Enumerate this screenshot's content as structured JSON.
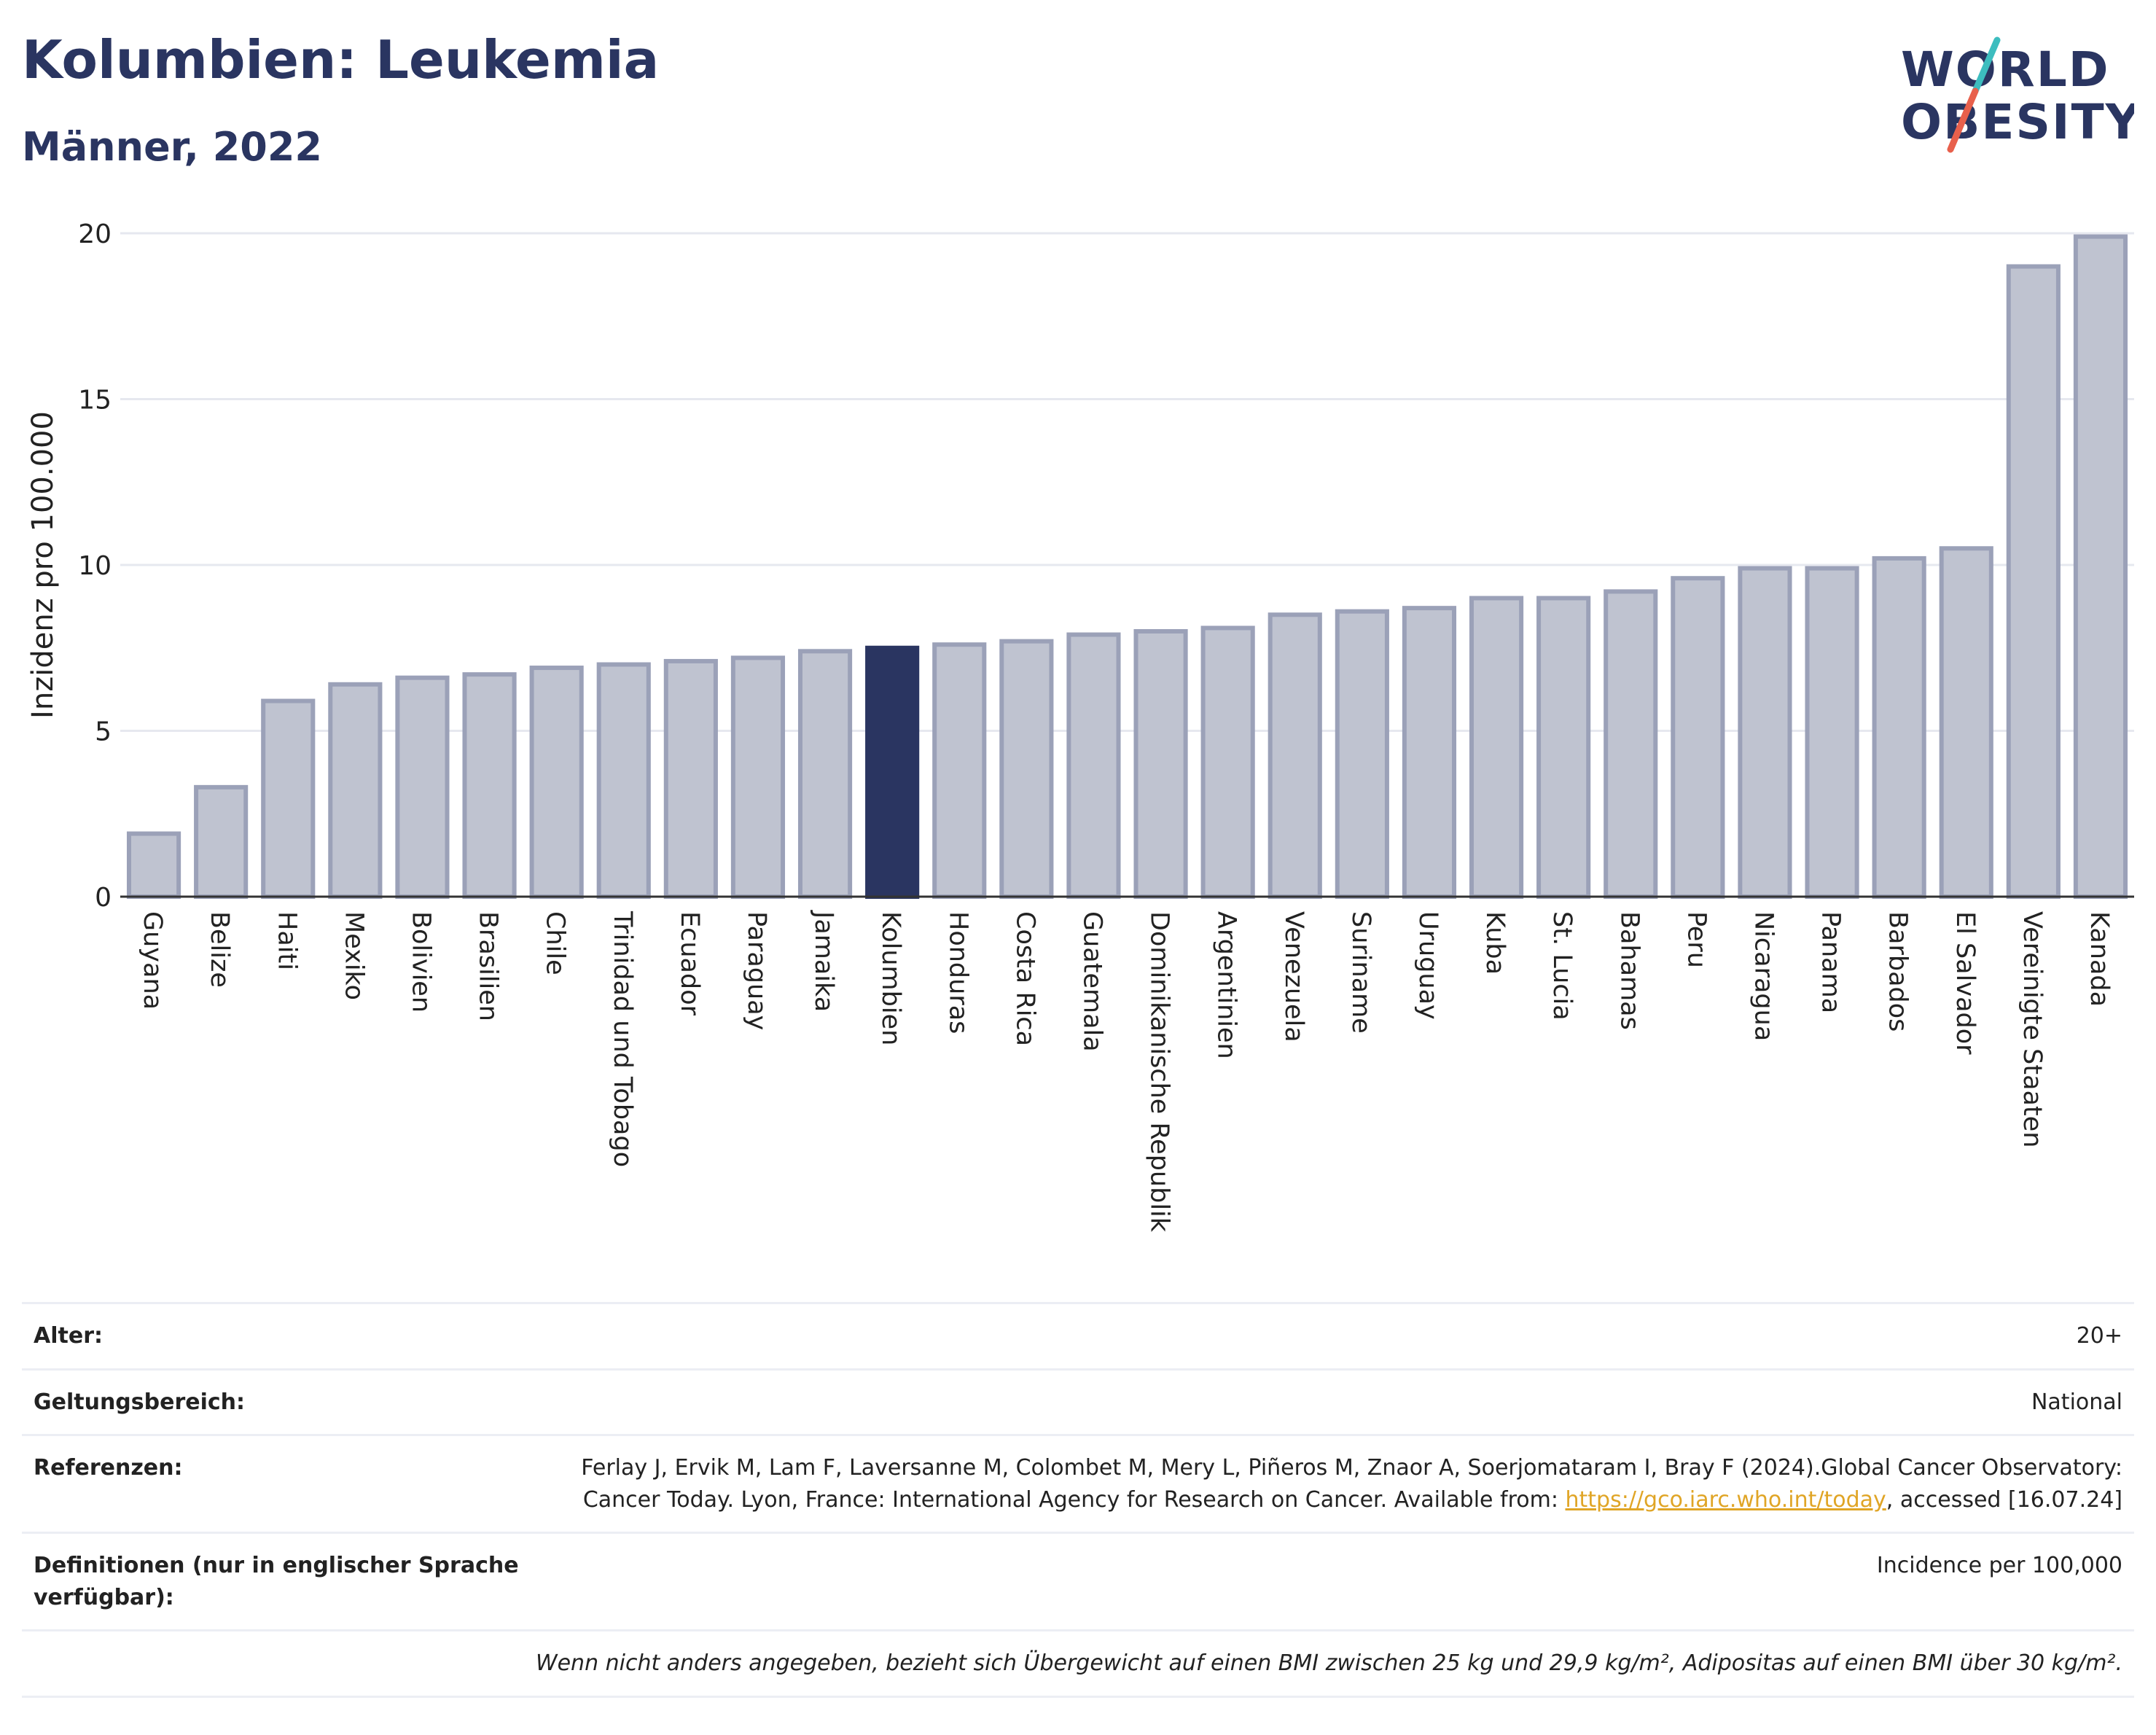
{
  "header": {
    "title": "Kolumbien: Leukemia",
    "subtitle": "Männer, 2022"
  },
  "logo": {
    "line1": "WORLD",
    "line2": "OBESITY",
    "colors": {
      "text": "#2a3561",
      "slash_red": "#e8604c",
      "slash_teal": "#3dbdbf"
    }
  },
  "chart_data": {
    "type": "bar",
    "ylabel": "Inzidenz pro 100.000",
    "ylim": [
      0,
      20
    ],
    "yticks": [
      0,
      5,
      10,
      15,
      20
    ],
    "grid": true,
    "highlight": "Kolumbien",
    "colors": {
      "bar": "#bfc3d0",
      "bar_border": "#9ba1b8",
      "highlight": "#2a3561"
    },
    "categories": [
      "Guyana",
      "Belize",
      "Haiti",
      "Mexiko",
      "Bolivien",
      "Brasilien",
      "Chile",
      "Trinidad und Tobago",
      "Ecuador",
      "Paraguay",
      "Jamaika",
      "Kolumbien",
      "Honduras",
      "Costa Rica",
      "Guatemala",
      "Dominikanische Republik",
      "Argentinien",
      "Venezuela",
      "Suriname",
      "Uruguay",
      "Kuba",
      "St. Lucia",
      "Bahamas",
      "Peru",
      "Nicaragua",
      "Panama",
      "Barbados",
      "El Salvador",
      "Vereinigte Staaten",
      "Kanada"
    ],
    "values": [
      1.9,
      3.3,
      5.9,
      6.4,
      6.6,
      6.7,
      6.9,
      7.0,
      7.1,
      7.2,
      7.4,
      7.5,
      7.6,
      7.7,
      7.9,
      8.0,
      8.1,
      8.5,
      8.6,
      8.7,
      9.0,
      9.0,
      9.2,
      9.6,
      9.9,
      9.9,
      10.2,
      10.5,
      19.0,
      19.9
    ]
  },
  "meta": {
    "age_label": "Alter:",
    "age_value": "20+",
    "scope_label": "Geltungsbereich:",
    "scope_value": "National",
    "refs_label": "Referenzen:",
    "refs_text_1": "Ferlay J, Ervik M, Lam F, Laversanne M, Colombet M, Mery L, Piñeros M, Znaor A, Soerjomataram I, Bray F (2024).Global Cancer Observatory: Cancer Today. Lyon, France: International Agency for Research on Cancer. Available from: ",
    "refs_link": "https://gco.iarc.who.int/today",
    "refs_text_2": ", accessed [16.07.24]",
    "def_label": "Definitionen (nur in englischer Sprache verfügbar):",
    "def_value": "Incidence per 100,000",
    "footnote": "Wenn nicht anders angegeben, bezieht sich Übergewicht auf einen BMI zwischen 25 kg und 29,9 kg/m², Adipositas auf einen BMI über 30 kg/m²."
  }
}
